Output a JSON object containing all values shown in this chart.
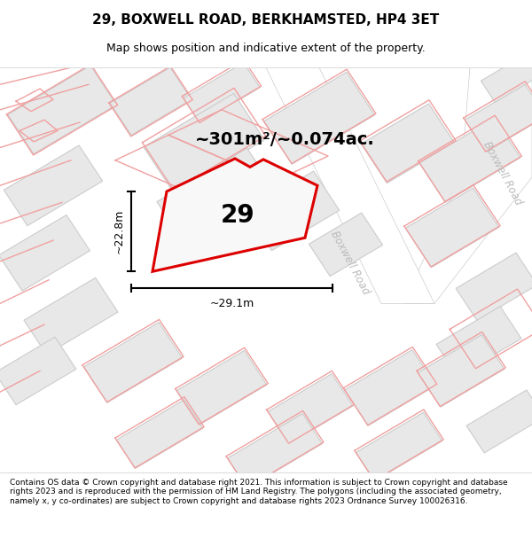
{
  "title": "29, BOXWELL ROAD, BERKHAMSTED, HP4 3ET",
  "subtitle": "Map shows position and indicative extent of the property.",
  "footer": "Contains OS data © Crown copyright and database right 2021. This information is subject to Crown copyright and database rights 2023 and is reproduced with the permission of HM Land Registry. The polygons (including the associated geometry, namely x, y co-ordinates) are subject to Crown copyright and database rights 2023 Ordnance Survey 100026316.",
  "area_label": "~301m²/~0.074ac.",
  "property_number": "29",
  "dim_width": "~29.1m",
  "dim_height": "~22.8m",
  "road_label": "Boxwell Road",
  "map_bg": "#ffffff",
  "block_color": "#e8e8e8",
  "block_edge_color": "#cccccc",
  "highlight_color": "#dd0000",
  "pink_line_color": "#f0a0a0",
  "text_color": "#000000",
  "road_text_color": "#bbbbbb",
  "title_fontsize": 11,
  "subtitle_fontsize": 9,
  "footer_fontsize": 6.5,
  "area_fontsize": 14,
  "number_fontsize": 20,
  "dim_fontsize": 9
}
